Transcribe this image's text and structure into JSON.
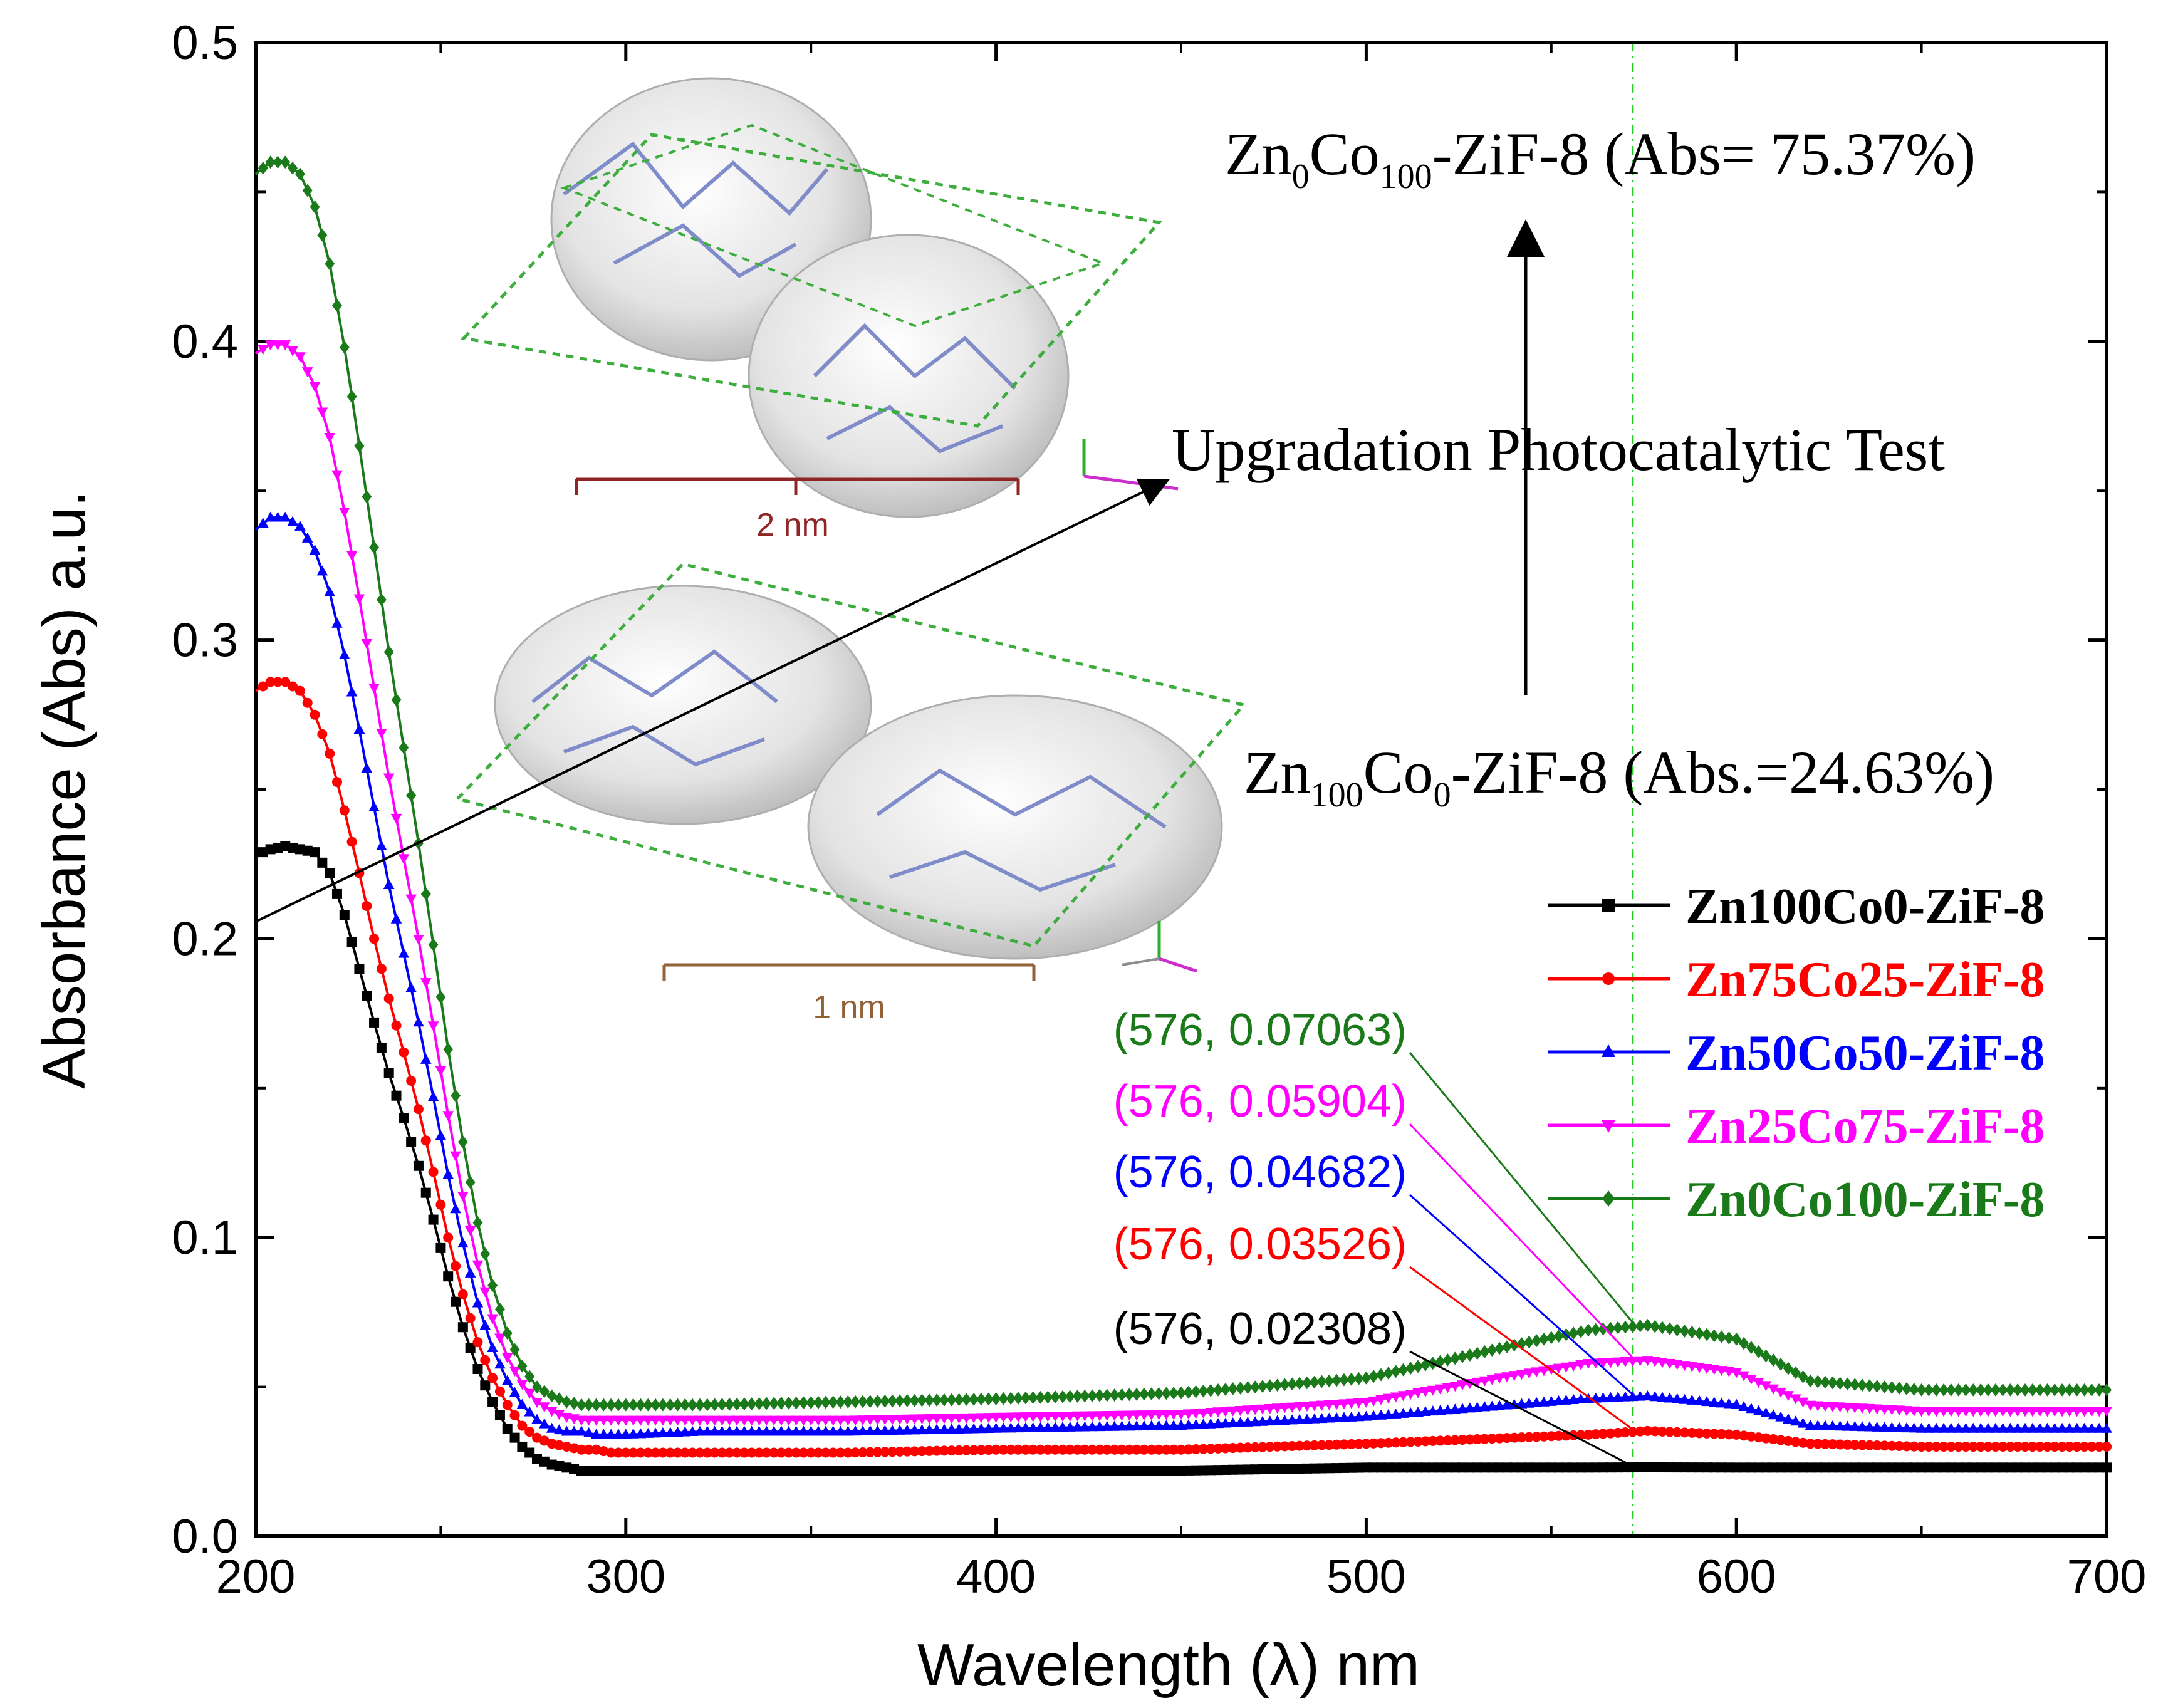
{
  "chart_data": {
    "type": "line",
    "xlabel": "Wavelength (λ) nm",
    "ylabel": "Absorbance (Abs) a.u.",
    "xlim": [
      200,
      700
    ],
    "ylim": [
      0.0,
      0.5
    ],
    "xticks": [
      "200",
      "300",
      "400",
      "500",
      "600",
      "700"
    ],
    "yticks": [
      "0.0",
      "0.1",
      "0.2",
      "0.3",
      "0.4",
      "0.5"
    ],
    "reference_line_x": 572,
    "series": [
      {
        "name": "Zn100Co0-ZiF-8",
        "color": "#000000",
        "marker": "square",
        "x": [
          200,
          204,
          208,
          212,
          216,
          220,
          224,
          228,
          232,
          236,
          240,
          244,
          248,
          252,
          256,
          260,
          264,
          268,
          272,
          276,
          280,
          284,
          288,
          292,
          296,
          300,
          320,
          360,
          400,
          450,
          500,
          540,
          560,
          576,
          600,
          620,
          650,
          700
        ],
        "values": [
          0.228,
          0.23,
          0.231,
          0.23,
          0.229,
          0.222,
          0.208,
          0.19,
          0.172,
          0.155,
          0.14,
          0.124,
          0.106,
          0.087,
          0.07,
          0.056,
          0.045,
          0.036,
          0.03,
          0.026,
          0.024,
          0.023,
          0.022,
          0.022,
          0.022,
          0.022,
          0.022,
          0.022,
          0.022,
          0.022,
          0.023,
          0.023,
          0.023,
          0.02308,
          0.023,
          0.023,
          0.023,
          0.023
        ]
      },
      {
        "name": "Zn75Co25-ZiF-8",
        "color": "#ff0000",
        "marker": "circle",
        "x": [
          200,
          204,
          208,
          212,
          216,
          220,
          224,
          228,
          232,
          236,
          240,
          244,
          248,
          252,
          256,
          260,
          264,
          268,
          272,
          276,
          280,
          284,
          288,
          292,
          296,
          300,
          320,
          360,
          400,
          450,
          500,
          540,
          560,
          576,
          600,
          620,
          650,
          700
        ],
        "values": [
          0.283,
          0.286,
          0.286,
          0.283,
          0.275,
          0.262,
          0.243,
          0.222,
          0.2,
          0.18,
          0.162,
          0.143,
          0.122,
          0.1,
          0.081,
          0.065,
          0.053,
          0.044,
          0.037,
          0.033,
          0.031,
          0.03,
          0.029,
          0.029,
          0.028,
          0.028,
          0.028,
          0.028,
          0.029,
          0.029,
          0.031,
          0.033,
          0.034,
          0.03526,
          0.034,
          0.031,
          0.03,
          0.03
        ]
      },
      {
        "name": "Zn50Co50-ZiF-8",
        "color": "#0000ff",
        "marker": "triangle",
        "x": [
          200,
          204,
          208,
          212,
          216,
          220,
          224,
          228,
          232,
          236,
          240,
          244,
          248,
          252,
          256,
          260,
          264,
          268,
          272,
          276,
          280,
          284,
          288,
          292,
          296,
          300,
          320,
          360,
          400,
          450,
          500,
          540,
          560,
          576,
          600,
          620,
          650,
          700
        ],
        "values": [
          0.337,
          0.341,
          0.341,
          0.338,
          0.33,
          0.316,
          0.295,
          0.27,
          0.244,
          0.218,
          0.195,
          0.172,
          0.147,
          0.121,
          0.098,
          0.078,
          0.063,
          0.052,
          0.044,
          0.039,
          0.036,
          0.035,
          0.035,
          0.034,
          0.034,
          0.034,
          0.035,
          0.035,
          0.036,
          0.037,
          0.04,
          0.044,
          0.046,
          0.04682,
          0.044,
          0.037,
          0.036,
          0.036
        ]
      },
      {
        "name": "Zn25Co75-ZiF-8",
        "color": "#ff00ff",
        "marker": "triangle-down",
        "x": [
          200,
          204,
          208,
          212,
          216,
          220,
          224,
          228,
          232,
          236,
          240,
          244,
          248,
          252,
          256,
          260,
          264,
          268,
          272,
          276,
          280,
          284,
          288,
          292,
          296,
          300,
          320,
          360,
          400,
          450,
          500,
          540,
          560,
          576,
          600,
          620,
          650,
          700
        ],
        "values": [
          0.396,
          0.399,
          0.399,
          0.395,
          0.385,
          0.368,
          0.343,
          0.314,
          0.284,
          0.254,
          0.227,
          0.2,
          0.171,
          0.141,
          0.114,
          0.091,
          0.073,
          0.06,
          0.051,
          0.045,
          0.042,
          0.04,
          0.039,
          0.039,
          0.039,
          0.039,
          0.039,
          0.039,
          0.04,
          0.041,
          0.045,
          0.054,
          0.058,
          0.05904,
          0.055,
          0.044,
          0.042,
          0.042
        ]
      },
      {
        "name": "Zn0Co100-ZiF-8",
        "color": "#1a7a1a",
        "marker": "diamond",
        "x": [
          200,
          204,
          208,
          212,
          216,
          220,
          224,
          228,
          232,
          236,
          240,
          244,
          248,
          252,
          256,
          260,
          264,
          268,
          272,
          276,
          280,
          284,
          288,
          292,
          296,
          300,
          320,
          360,
          400,
          450,
          500,
          540,
          560,
          576,
          600,
          620,
          650,
          700
        ],
        "values": [
          0.456,
          0.46,
          0.46,
          0.456,
          0.445,
          0.426,
          0.398,
          0.365,
          0.331,
          0.296,
          0.264,
          0.232,
          0.198,
          0.163,
          0.132,
          0.105,
          0.084,
          0.068,
          0.057,
          0.05,
          0.047,
          0.045,
          0.044,
          0.044,
          0.044,
          0.044,
          0.044,
          0.045,
          0.046,
          0.048,
          0.053,
          0.064,
          0.069,
          0.07063,
          0.066,
          0.052,
          0.049,
          0.049
        ]
      }
    ],
    "point_labels": [
      {
        "text": "(576, 0.07063)",
        "color": "#1a7a1a",
        "x": 576,
        "y": 0.07063
      },
      {
        "text": "(576, 0.05904)",
        "color": "#ff00ff",
        "x": 576,
        "y": 0.05904
      },
      {
        "text": "(576, 0.04682)",
        "color": "#0000ff",
        "x": 576,
        "y": 0.04682
      },
      {
        "text": "(576, 0.03526)",
        "color": "#ff0000",
        "x": 576,
        "y": 0.03526
      },
      {
        "text": "(576, 0.02308)",
        "color": "#000000",
        "x": 576,
        "y": 0.02308
      }
    ],
    "annotations": {
      "top_formula": {
        "main": "Zn",
        "sub1": "0",
        "mid": "Co",
        "sub2": "100",
        "tail": "-ZiF-8 (Abs= 75.37%)"
      },
      "bottom_formula": {
        "main": "Zn",
        "sub1": "100",
        "mid": "Co",
        "sub2": "0",
        "tail": "-ZiF-8 (Abs.=24.63%)"
      },
      "upgradation": "Upgradation Photocatalytic Test",
      "scale_top": "2 nm",
      "scale_bottom": "1 nm"
    }
  }
}
